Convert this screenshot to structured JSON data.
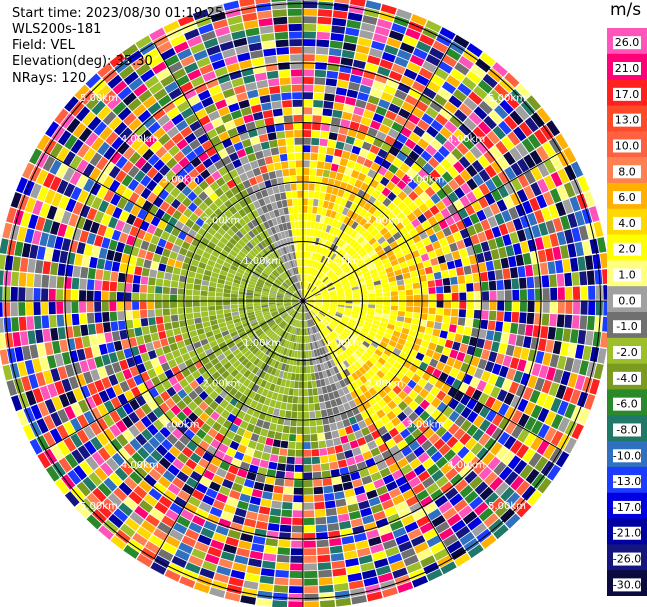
{
  "header": {
    "start_time": "Start time: 2023/08/30 01:19:25",
    "instrument": "WLS200s-181",
    "field": "Field: VEL",
    "elevation": "Elevation(deg): 35.30",
    "nrays": "NRays: 120"
  },
  "colorbar": {
    "title": "m/s",
    "ticks": [
      "26.0",
      "21.0",
      "17.0",
      "13.0",
      "10.0",
      "8.0",
      "6.0",
      "4.0",
      "2.0",
      "1.0",
      "0.0",
      "-1.0",
      "-2.0",
      "-4.0",
      "-6.0",
      "-8.0",
      "-10.0",
      "-13.0",
      "-17.0",
      "-21.0",
      "-26.0",
      "-30.0"
    ],
    "colors": [
      "#ff55bb",
      "#ff0077",
      "#ff2020",
      "#ff4a2a",
      "#ff6040",
      "#ff8050",
      "#ffb000",
      "#ffd800",
      "#ffff00",
      "#ffff80",
      "#a0a0a0",
      "#707070",
      "#9cbf2a",
      "#7a9a20",
      "#2a8a2a",
      "#207868",
      "#3070c0",
      "#1c3cff",
      "#0000e0",
      "#0000a0",
      "#151580",
      "#0a0a40"
    ]
  },
  "chart_data": {
    "type": "heatmap",
    "title": "",
    "field": "VEL",
    "units": "m/s",
    "nrays": 120,
    "vmin": -30.0,
    "vmax": 26.0,
    "range_ring_labels": [
      "1.00km",
      "2.00km",
      "3.00km",
      "4.00km",
      "5.00km"
    ],
    "range_rings_km": [
      1,
      2,
      3,
      4,
      5
    ],
    "pattern": "Near-range dipole: positive radial velocity (yellow/orange, ~1 to 8 m/s) toward east/north-east, negative radial velocity (green, ~-1 to -4 m/s) toward west/south-west within ~2 km; far range noisy with full-scale random values."
  }
}
